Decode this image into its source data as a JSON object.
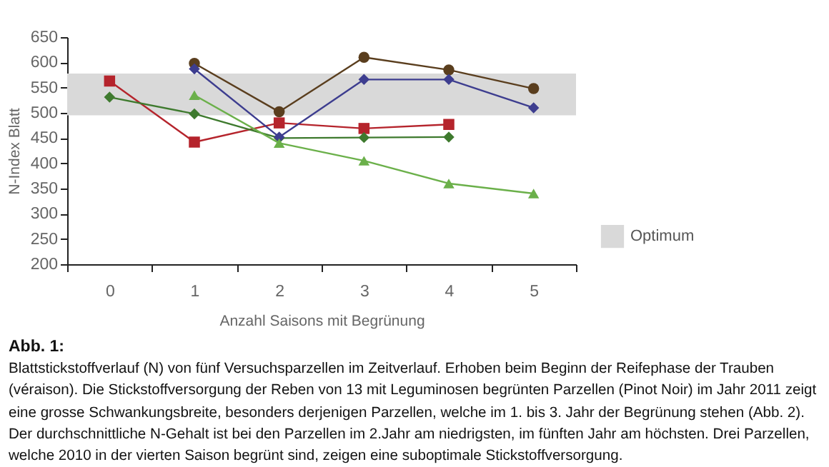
{
  "chart_data": {
    "type": "line",
    "xlabel": "Anzahl Saisons mit Begrünung",
    "ylabel": "N-Index Blatt",
    "categories": [
      "0",
      "1",
      "2",
      "3",
      "4",
      "5"
    ],
    "series": [
      {
        "color": "#b5242c",
        "marker": "square",
        "values": [
          563,
          442,
          480,
          469,
          477,
          null
        ]
      },
      {
        "color": "#3e7a2e",
        "marker": "diamond",
        "values": [
          531,
          498,
          450,
          451,
          452,
          null
        ]
      },
      {
        "color": "#5a3e1e",
        "marker": "circle",
        "values": [
          null,
          598,
          502,
          610,
          585,
          548
        ]
      },
      {
        "color": "#3d3d8f",
        "marker": "diamond",
        "values": [
          null,
          587,
          452,
          566,
          566,
          510
        ]
      },
      {
        "color": "#6bb04a",
        "marker": "triangle",
        "values": [
          null,
          535,
          440,
          405,
          360,
          340
        ]
      }
    ],
    "ylim": [
      200,
      650
    ],
    "yticks": [
      200,
      250,
      300,
      350,
      400,
      450,
      500,
      550,
      600,
      650
    ],
    "bands": [
      {
        "axis": "y",
        "from": 495,
        "to": 578,
        "label": "Optimum",
        "color": "#d9d9d9"
      }
    ],
    "grid": false,
    "annotations": [
      "Abb. 1:",
      "Blattstickstoffverlauf (N) von fünf Versuchsparzellen im Zeitverlauf. Erhoben beim Beginn der Reifephase der Trauben (véraison). Die Stickstoffversorgung der Reben von 13 mit Leguminosen begrünten Parzellen (Pinot Noir) im Jahr 2011 zeigt eine grosse Schwankungsbreite, besonders derjenigen Parzellen, welche im 1. bis 3. Jahr der Begrünung stehen (Abb. 2). Der durchschnittliche N-Gehalt ist bei den Parzellen im 2.Jahr am niedrigsten, im fünften Jahr am höchsten. Drei Parzellen, welche 2010 in der vierten Saison begrünt sind, zeigen eine suboptimale Stickstoffversorgung."
    ]
  }
}
